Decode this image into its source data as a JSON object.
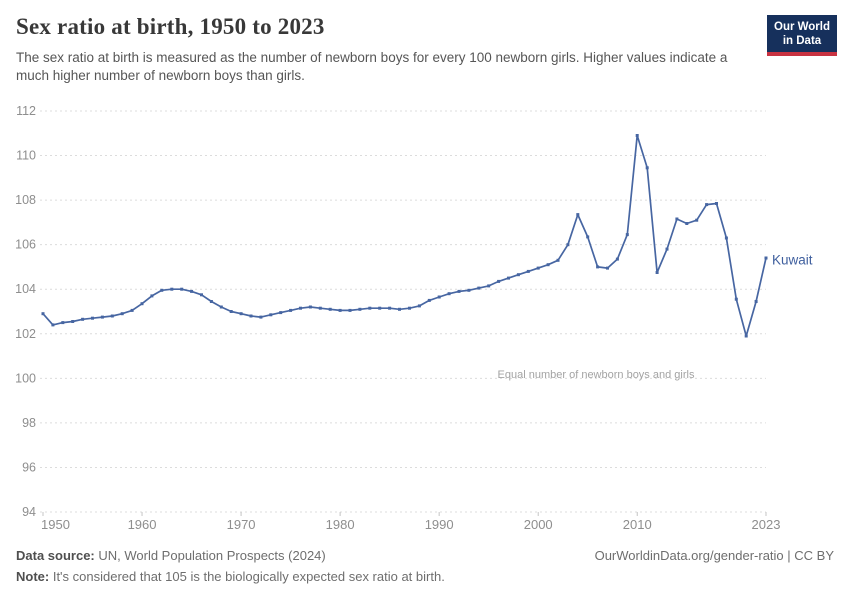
{
  "header": {
    "title": "Sex ratio at birth, 1950 to 2023",
    "subtitle": "The sex ratio at birth is measured as the number of newborn boys for every 100 newborn girls. Higher values indicate a much higher number of newborn boys than girls.",
    "logo": {
      "line1": "Our World",
      "line2": "in Data"
    }
  },
  "chart_data": {
    "type": "line",
    "title": "Sex ratio at birth, 1950 to 2023",
    "xlim": [
      1950,
      2023
    ],
    "ylim": [
      94,
      112
    ],
    "x_ticks": [
      1950,
      1960,
      1970,
      1980,
      1990,
      2000,
      2010,
      2023
    ],
    "y_ticks": [
      94,
      96,
      98,
      100,
      102,
      104,
      106,
      108,
      110,
      112
    ],
    "grid": "horizontal-dashed",
    "legend_position": "end-of-line-label",
    "annotation": {
      "text": "Equal number of newborn boys and girls",
      "y": 100
    },
    "series": [
      {
        "name": "Kuwait",
        "years": [
          1950,
          1951,
          1952,
          1953,
          1954,
          1955,
          1956,
          1957,
          1958,
          1959,
          1960,
          1961,
          1962,
          1963,
          1964,
          1965,
          1966,
          1967,
          1968,
          1969,
          1970,
          1971,
          1972,
          1973,
          1974,
          1975,
          1976,
          1977,
          1978,
          1979,
          1980,
          1981,
          1982,
          1983,
          1984,
          1985,
          1986,
          1987,
          1988,
          1989,
          1990,
          1991,
          1992,
          1993,
          1994,
          1995,
          1996,
          1997,
          1998,
          1999,
          2000,
          2001,
          2002,
          2003,
          2004,
          2005,
          2006,
          2007,
          2008,
          2009,
          2010,
          2011,
          2012,
          2013,
          2014,
          2015,
          2016,
          2017,
          2018,
          2019,
          2020,
          2021,
          2022,
          2023
        ],
        "values": [
          102.9,
          102.4,
          102.5,
          102.55,
          102.65,
          102.7,
          102.75,
          102.8,
          102.9,
          103.05,
          103.35,
          103.7,
          103.95,
          104.0,
          104.0,
          103.9,
          103.75,
          103.45,
          103.2,
          103.0,
          102.9,
          102.8,
          102.75,
          102.85,
          102.95,
          103.05,
          103.15,
          103.2,
          103.15,
          103.1,
          103.05,
          103.05,
          103.1,
          103.15,
          103.15,
          103.15,
          103.1,
          103.15,
          103.25,
          103.5,
          103.65,
          103.8,
          103.9,
          103.95,
          104.05,
          104.15,
          104.35,
          104.5,
          104.65,
          104.8,
          104.95,
          105.1,
          105.3,
          106.0,
          107.35,
          106.35,
          105.0,
          104.95,
          105.35,
          106.45,
          110.9,
          109.45,
          104.75,
          105.8,
          107.15,
          106.95,
          107.1,
          107.8,
          107.85,
          106.3,
          103.55,
          101.9,
          103.45,
          105.4
        ]
      }
    ]
  },
  "colors": {
    "line": "#4766a2",
    "series_label": "#3f5f9e",
    "gridline": "#dcdcdc",
    "axis_label": "#8e8e8e",
    "tick": "#c4c4c4",
    "annotation": "#a3a3a3",
    "logo_bg": "#16305c",
    "logo_red": "#c83241"
  },
  "footer": {
    "datasource_label": "Data source:",
    "datasource_value": " UN, World Population Prospects (2024)",
    "link": "OurWorldinData.org/gender-ratio | CC BY",
    "note_label": "Note:",
    "note_value": " It's considered that 105 is the biologically expected sex ratio at birth."
  }
}
